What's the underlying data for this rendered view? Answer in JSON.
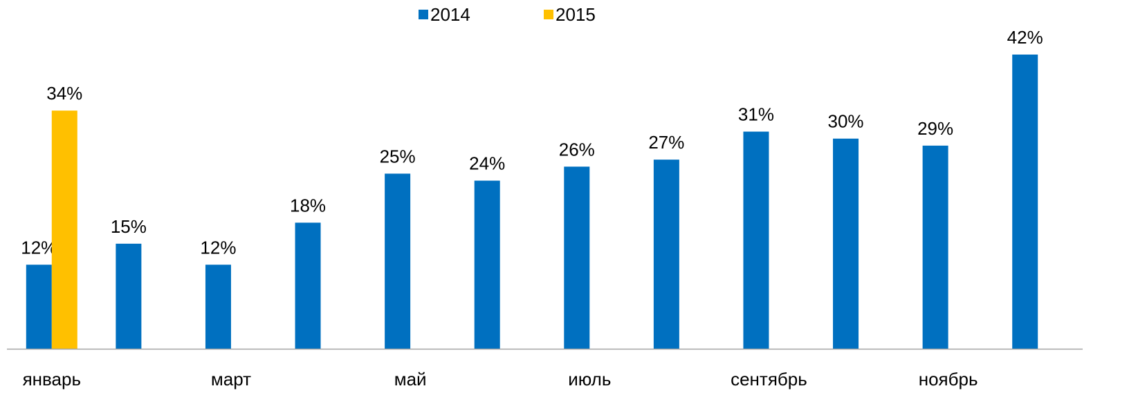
{
  "chart_data": {
    "type": "bar",
    "categories": [
      "январь",
      null,
      "март",
      null,
      "май",
      null,
      "июль",
      null,
      "сентябрь",
      null,
      "ноябрь",
      null
    ],
    "series": [
      {
        "name": "2014",
        "color": "#0070c0",
        "values": [
          12,
          15,
          12,
          18,
          25,
          24,
          26,
          27,
          31,
          30,
          29,
          42
        ],
        "value_labels": [
          "12%",
          "15%",
          "12%",
          "18%",
          "25%",
          "24%",
          "26%",
          "27%",
          "31%",
          "30%",
          "29%",
          "42%"
        ]
      },
      {
        "name": "2015",
        "color": "#ffc000",
        "values": [
          34,
          null,
          null,
          null,
          null,
          null,
          null,
          null,
          null,
          null,
          null,
          null
        ],
        "value_labels": [
          "34%",
          null,
          null,
          null,
          null,
          null,
          null,
          null,
          null,
          null,
          null,
          null
        ]
      }
    ],
    "legend": "top"
  }
}
